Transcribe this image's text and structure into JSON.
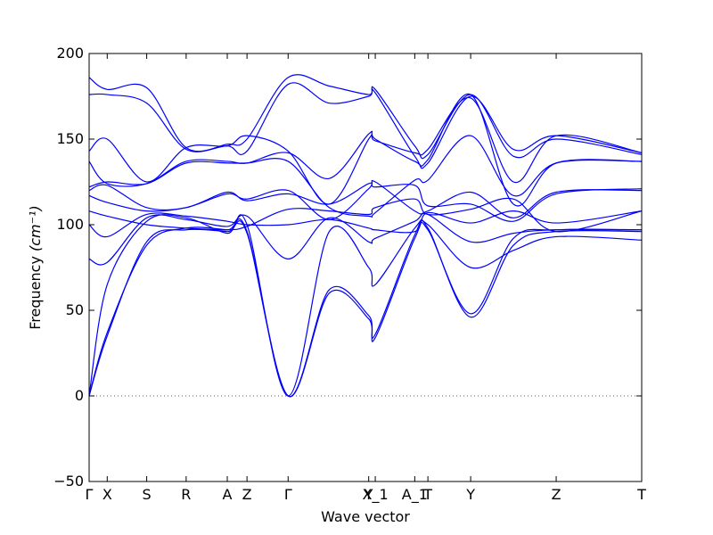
{
  "chart_data": {
    "type": "line",
    "title": "",
    "xlabel": "Wave vector",
    "ylabel": "Frequency",
    "ylabel_unit": "(cm⁻¹)",
    "ylim": [
      -50,
      200
    ],
    "yticks": [
      -50,
      0,
      50,
      100,
      150,
      200
    ],
    "grid": false,
    "zero_line": true,
    "line_color": "#0000ff",
    "x_ticks": [
      {
        "label": "Γ",
        "pos": 0.0
      },
      {
        "label": "X",
        "pos": 0.55
      },
      {
        "label": "S",
        "pos": 1.75
      },
      {
        "label": "R",
        "pos": 2.95
      },
      {
        "label": "A",
        "pos": 4.2
      },
      {
        "label": "Z",
        "pos": 4.8
      },
      {
        "label": "Γ",
        "pos": 6.05
      },
      {
        "label": "Y",
        "pos": 8.5
      },
      {
        "label": "X_1",
        "pos": 8.7
      },
      {
        "label": "A_1",
        "pos": 9.9
      },
      {
        "label": "T",
        "pos": 10.3
      },
      {
        "label": "Y",
        "pos": 11.6
      },
      {
        "label": "Z",
        "pos": 14.2
      },
      {
        "label": "T",
        "pos": 16.8
      }
    ],
    "xlim": [
      0,
      16.8
    ],
    "series": [
      {
        "x": [
          0,
          0.55,
          1.75,
          2.95,
          4.2,
          4.8,
          6.05,
          7.3,
          8.5,
          8.7,
          9.9,
          10.3,
          11.6,
          12.9,
          14.2,
          16.8
        ],
        "values": [
          0,
          37,
          88,
          98,
          97,
          96,
          0,
          60,
          45,
          34,
          92,
          97,
          48,
          92,
          97,
          97
        ]
      },
      {
        "x": [
          0,
          0.55,
          1.75,
          2.95,
          4.2,
          4.8,
          6.05,
          7.3,
          8.5,
          8.7,
          9.9,
          10.3,
          11.6,
          12.9,
          14.2,
          16.8
        ],
        "values": [
          0,
          35,
          90,
          97,
          96,
          95,
          0,
          62,
          47,
          36,
          94,
          98,
          46,
          88,
          96,
          96
        ]
      },
      {
        "x": [
          0,
          0.55,
          1.75,
          2.95,
          4.2,
          4.8,
          6.05,
          7.3,
          8.5,
          8.7,
          9.9,
          10.3,
          11.6,
          12.9,
          14.2,
          16.8
        ],
        "values": [
          0,
          65,
          102,
          104,
          95,
          100,
          0,
          96,
          75,
          65,
          98,
          100,
          75,
          85,
          93,
          91
        ]
      },
      {
        "x": [
          0,
          0.55,
          1.75,
          2.95,
          4.2,
          4.8,
          6.05,
          7.3,
          8.5,
          8.7,
          9.9,
          10.3,
          11.6,
          12.9,
          14.2,
          16.8
        ],
        "values": [
          80,
          78,
          104,
          103,
          99,
          105,
          80,
          104,
          90,
          92,
          102,
          106,
          90,
          95,
          97,
          97
        ]
      },
      {
        "x": [
          0,
          0.55,
          1.75,
          2.95,
          4.2,
          4.8,
          6.05,
          7.3,
          8.5,
          8.7,
          9.9,
          10.3,
          11.6,
          12.9,
          14.2,
          16.8
        ],
        "values": [
          100,
          93,
          106,
          105,
          102,
          100,
          100,
          103,
          98,
          97,
          96,
          107,
          101,
          108,
          101,
          108
        ]
      },
      {
        "x": [
          0,
          0.55,
          1.75,
          2.95,
          4.2,
          4.8,
          6.05,
          7.3,
          8.5,
          8.7,
          9.9,
          10.3,
          11.6,
          12.9,
          14.2,
          16.8
        ],
        "values": [
          108,
          105,
          100,
          98,
          97,
          99,
          109,
          108,
          106,
          110,
          115,
          106,
          109,
          115,
          96,
          108
        ]
      },
      {
        "x": [
          0,
          0.55,
          1.75,
          2.95,
          4.2,
          4.8,
          6.05,
          7.3,
          8.5,
          8.7,
          9.9,
          10.3,
          11.6,
          12.9,
          14.2,
          16.8
        ],
        "values": [
          117,
          113,
          108,
          110,
          118,
          115,
          120,
          103,
          121,
          125,
          108,
          108,
          119,
          104,
          119,
          120
        ]
      },
      {
        "x": [
          0,
          0.55,
          1.75,
          2.95,
          4.2,
          4.8,
          6.05,
          7.3,
          8.5,
          8.7,
          9.9,
          10.3,
          11.6,
          12.9,
          14.2,
          16.8
        ],
        "values": [
          120,
          123,
          110,
          110,
          119,
          114,
          118,
          112,
          124,
          122,
          123,
          111,
          112,
          102,
          118,
          121
        ]
      },
      {
        "x": [
          0,
          0.55,
          1.75,
          2.95,
          4.2,
          4.8,
          6.05,
          7.3,
          8.5,
          8.7,
          9.9,
          10.3,
          11.6,
          12.9,
          14.2,
          16.8
        ],
        "values": [
          122,
          125,
          124,
          136,
          136,
          136,
          137,
          110,
          105,
          107,
          126,
          126,
          152,
          117,
          136,
          137
        ]
      },
      {
        "x": [
          0,
          0.55,
          1.75,
          2.95,
          4.2,
          4.8,
          6.05,
          7.3,
          8.5,
          8.7,
          9.9,
          10.3,
          11.6,
          12.9,
          14.2,
          16.8
        ],
        "values": [
          137,
          124,
          124,
          137,
          137,
          136,
          142,
          127,
          153,
          150,
          137,
          138,
          176,
          112,
          136,
          137
        ]
      },
      {
        "x": [
          0,
          0.55,
          1.75,
          2.95,
          4.2,
          4.8,
          6.05,
          7.3,
          8.5,
          8.7,
          9.9,
          10.3,
          11.6,
          12.9,
          14.2,
          16.8
        ],
        "values": [
          143,
          150,
          125,
          145,
          146,
          152,
          143,
          112,
          150,
          149,
          142,
          144,
          174,
          125,
          152,
          142
        ]
      },
      {
        "x": [
          0,
          0.55,
          1.75,
          2.95,
          4.2,
          4.8,
          6.05,
          7.3,
          8.5,
          8.7,
          9.9,
          10.3,
          11.6,
          12.9,
          14.2,
          16.8
        ],
        "values": [
          176,
          176,
          171,
          144,
          146,
          143,
          182,
          171,
          175,
          177,
          140,
          136,
          175,
          144,
          152,
          142
        ]
      },
      {
        "x": [
          0,
          0.55,
          1.75,
          2.95,
          4.2,
          4.8,
          6.05,
          7.3,
          8.5,
          8.7,
          9.9,
          10.3,
          11.6,
          12.9,
          14.2,
          16.8
        ],
        "values": [
          186,
          179,
          180,
          145,
          147,
          150,
          186,
          181,
          176,
          179,
          146,
          141,
          176,
          140,
          150,
          141
        ]
      }
    ]
  }
}
